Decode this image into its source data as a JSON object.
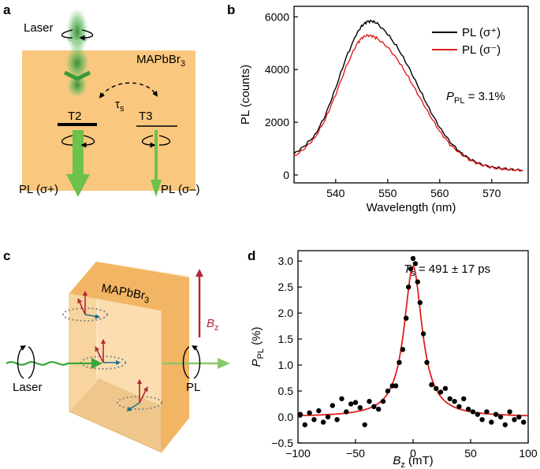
{
  "panels": {
    "a": {
      "label": "a",
      "laser": "Laser",
      "material": "MAPbBr",
      "material_sub": "3",
      "tau": "τ",
      "tau_sub": "s",
      "t2": "T2",
      "t3": "T3",
      "pl_plus": "PL (σ+)",
      "pl_minus": "PL (σ–)",
      "colors": {
        "slab": "#f9c77e",
        "beam": "#6cc24a"
      }
    },
    "b": {
      "label": "b"
    },
    "c": {
      "label": "c",
      "material": "MAPbBr",
      "material_sub": "3",
      "b_field": "B",
      "b_field_sub": "z",
      "laser": "Laser",
      "pl": "PL",
      "colors": {
        "slab": "#f9c77e",
        "arrow": "#b02a3a",
        "beam": "#6cc24a"
      }
    },
    "d": {
      "label": "d"
    }
  },
  "chart_data": [
    {
      "panel": "b",
      "type": "line",
      "xlabel": "Wavelength (nm)",
      "ylabel": "PL (counts)",
      "xlim": [
        532,
        577
      ],
      "ylim": [
        -300,
        6400
      ],
      "xticks": [
        540,
        550,
        560,
        570
      ],
      "yticks": [
        0,
        2000,
        4000,
        6000
      ],
      "x": [
        532,
        534,
        536,
        538,
        540,
        542,
        544,
        545,
        546,
        547,
        548,
        550,
        552,
        554,
        556,
        558,
        560,
        562,
        564,
        566,
        568,
        570,
        572,
        574,
        576
      ],
      "series": [
        {
          "name": "PL (σ⁺)",
          "color": "#000000",
          "values": [
            800,
            1100,
            1500,
            2250,
            3300,
            4450,
            5350,
            5650,
            5820,
            5840,
            5750,
            5350,
            4800,
            4100,
            3300,
            2500,
            1800,
            1250,
            850,
            580,
            400,
            300,
            240,
            200,
            180
          ]
        },
        {
          "name": "PL (σ⁻)",
          "color": "#e0201b",
          "values": [
            700,
            1000,
            1400,
            2100,
            3050,
            4100,
            4950,
            5200,
            5300,
            5280,
            5180,
            4850,
            4350,
            3700,
            3000,
            2300,
            1650,
            1150,
            800,
            550,
            380,
            290,
            230,
            190,
            170
          ]
        }
      ],
      "legend_position": "top-right",
      "annotation": {
        "text": "P",
        "sub": "PL",
        "rest": " = 3.1%"
      }
    },
    {
      "panel": "d",
      "type": "scatter",
      "xlabel_main": "B",
      "xlabel_sub": "z",
      "xlabel_rest": " (mT)",
      "ylabel_main": "P",
      "ylabel_sub": "PL",
      "ylabel_rest": " (%)",
      "xlim": [
        -100,
        100
      ],
      "ylim": [
        -0.5,
        3.2
      ],
      "xticks": [
        -100,
        -50,
        0,
        50,
        100
      ],
      "yticks": [
        -0.5,
        0.0,
        0.5,
        1.0,
        1.5,
        2.0,
        2.5,
        3.0
      ],
      "points": [
        [
          -98,
          0.05
        ],
        [
          -94,
          -0.15
        ],
        [
          -90,
          0.08
        ],
        [
          -86,
          -0.05
        ],
        [
          -82,
          0.12
        ],
        [
          -78,
          -0.1
        ],
        [
          -74,
          0.0
        ],
        [
          -70,
          0.22
        ],
        [
          -66,
          -0.05
        ],
        [
          -62,
          0.35
        ],
        [
          -58,
          0.1
        ],
        [
          -54,
          0.25
        ],
        [
          -50,
          0.28
        ],
        [
          -46,
          0.18
        ],
        [
          -42,
          -0.15
        ],
        [
          -38,
          0.3
        ],
        [
          -34,
          0.2
        ],
        [
          -30,
          0.15
        ],
        [
          -26,
          0.3
        ],
        [
          -22,
          0.5
        ],
        [
          -18,
          0.6
        ],
        [
          -15,
          0.6
        ],
        [
          -12,
          1.05
        ],
        [
          -9,
          1.3
        ],
        [
          -6,
          1.9
        ],
        [
          -4,
          2.5
        ],
        [
          -2,
          2.85
        ],
        [
          0,
          3.05
        ],
        [
          2,
          2.95
        ],
        [
          4,
          2.6
        ],
        [
          6,
          2.2
        ],
        [
          9,
          1.6
        ],
        [
          12,
          1.05
        ],
        [
          16,
          0.62
        ],
        [
          20,
          0.55
        ],
        [
          24,
          0.48
        ],
        [
          28,
          0.55
        ],
        [
          32,
          0.35
        ],
        [
          36,
          0.3
        ],
        [
          40,
          0.2
        ],
        [
          44,
          0.35
        ],
        [
          48,
          0.15
        ],
        [
          52,
          0.1
        ],
        [
          56,
          0.05
        ],
        [
          60,
          -0.05
        ],
        [
          64,
          0.1
        ],
        [
          68,
          -0.1
        ],
        [
          72,
          0.05
        ],
        [
          76,
          0.0
        ],
        [
          80,
          -0.15
        ],
        [
          84,
          0.1
        ],
        [
          88,
          -0.05
        ],
        [
          92,
          0.0
        ],
        [
          96,
          -0.1
        ]
      ],
      "fit": {
        "color": "#e0201b",
        "amplitude": 2.9,
        "halfwidth": 9.5,
        "offset": 0.0
      },
      "annotation": {
        "text": "T",
        "sub": "s",
        "rest": " = 491 ± 17 ps"
      }
    }
  ]
}
